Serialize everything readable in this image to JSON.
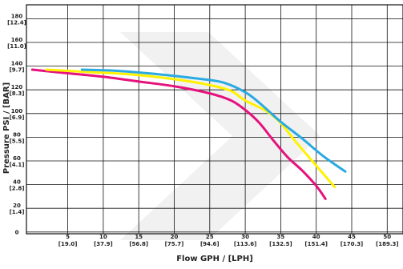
{
  "chart_data": {
    "type": "line",
    "title": "",
    "xlabel": "Flow GPH / [LPH]",
    "ylabel": "Pressure PSI / [BAR]",
    "xlim": [
      0,
      50
    ],
    "ylim": [
      0,
      180
    ],
    "grid": true,
    "x_ticks": [
      {
        "value": 5,
        "label": "5",
        "sublabel": "[19.0]"
      },
      {
        "value": 10,
        "label": "10",
        "sublabel": "[37.9]"
      },
      {
        "value": 15,
        "label": "15",
        "sublabel": "[56.8]"
      },
      {
        "value": 20,
        "label": "20",
        "sublabel": "[75.7]"
      },
      {
        "value": 25,
        "label": "25",
        "sublabel": "[94.6]"
      },
      {
        "value": 30,
        "label": "30",
        "sublabel": "[113.6]"
      },
      {
        "value": 35,
        "label": "35",
        "sublabel": "[132.5]"
      },
      {
        "value": 40,
        "label": "40",
        "sublabel": "[151.4]"
      },
      {
        "value": 45,
        "label": "45",
        "sublabel": "[170.3]"
      },
      {
        "value": 50,
        "label": "50",
        "sublabel": "[189.3]"
      }
    ],
    "y_ticks": [
      {
        "value": 0,
        "label": "0",
        "sublabel": ""
      },
      {
        "value": 20,
        "label": "20",
        "sublabel": "[1.4]"
      },
      {
        "value": 40,
        "label": "40",
        "sublabel": "[2.8]"
      },
      {
        "value": 60,
        "label": "60",
        "sublabel": "[4.1]"
      },
      {
        "value": 80,
        "label": "80",
        "sublabel": "[5.5]"
      },
      {
        "value": 100,
        "label": "100",
        "sublabel": "[6.9]"
      },
      {
        "value": 120,
        "label": "120",
        "sublabel": "[8.3]"
      },
      {
        "value": 140,
        "label": "140",
        "sublabel": "[9.7]"
      },
      {
        "value": 160,
        "label": "160",
        "sublabel": "[11.0]"
      },
      {
        "value": 180,
        "label": "180",
        "sublabel": "[12.4]"
      }
    ],
    "series": [
      {
        "color": "#e5127d",
        "x": [
          0,
          5,
          10,
          15,
          20,
          25,
          28,
          30,
          32,
          34,
          36,
          38,
          40,
          41.3
        ],
        "y": [
          137,
          134,
          131,
          127,
          123,
          117,
          111,
          103,
          92,
          77,
          63,
          52,
          39,
          28
        ]
      },
      {
        "color": "#fff200",
        "x": [
          2,
          8,
          14,
          20,
          25,
          28,
          30,
          33,
          35,
          37,
          40,
          42.6
        ],
        "y": [
          137,
          135,
          133,
          129,
          124,
          119,
          111,
          102,
          92,
          77,
          56,
          38
        ]
      },
      {
        "color": "#29aae1",
        "x": [
          7,
          12,
          18,
          24,
          27,
          30,
          32,
          35,
          38,
          41,
          44.1
        ],
        "y": [
          137,
          136,
          133,
          129,
          126,
          118,
          109,
          93,
          79,
          64,
          51
        ]
      }
    ]
  }
}
